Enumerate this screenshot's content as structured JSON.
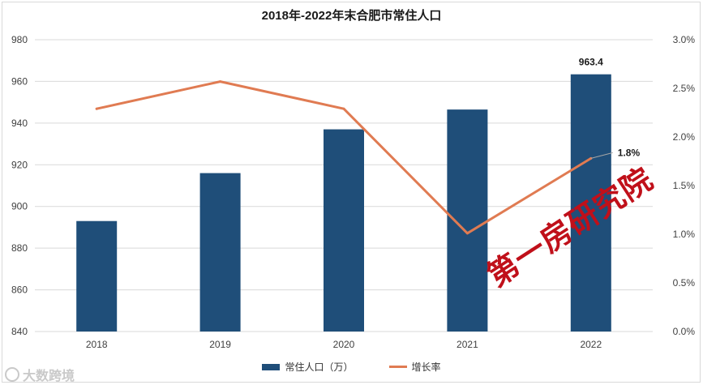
{
  "title": "2018年-2022年末合肥市常住人口",
  "watermark": "第一房研究院",
  "logo_text": "大数跨境",
  "legend": {
    "bar_label": "常住人口（万）",
    "line_label": "增长率"
  },
  "colors": {
    "bar": "#1f4e79",
    "line": "#e07b52",
    "watermark": "#c0101a",
    "grid": "#d9d9d9"
  },
  "chart_data": {
    "type": "bar+line",
    "title": "2018年-2022年末合肥市常住人口",
    "categories": [
      "2018",
      "2019",
      "2020",
      "2021",
      "2022"
    ],
    "series": [
      {
        "name": "常住人口（万）",
        "type": "bar",
        "axis": "left",
        "values": [
          893.0,
          916.0,
          937.0,
          946.5,
          963.4
        ]
      },
      {
        "name": "增长率",
        "type": "line",
        "axis": "right",
        "values": [
          2.29,
          2.57,
          2.29,
          1.01,
          1.78
        ]
      }
    ],
    "y_left": {
      "min": 840,
      "max": 980,
      "ticks": [
        "840",
        "860",
        "880",
        "900",
        "920",
        "940",
        "960",
        "980"
      ]
    },
    "y_right": {
      "min": 0,
      "max": 3.0,
      "ticks": [
        "0.0%",
        "0.5%",
        "1.0%",
        "1.5%",
        "2.0%",
        "2.5%",
        "3.0%"
      ]
    },
    "data_labels": [
      {
        "series": 0,
        "index": 4,
        "text": "963.4"
      },
      {
        "series": 1,
        "index": 4,
        "text": "1.8%"
      }
    ],
    "grid": true,
    "legend_position": "bottom"
  }
}
